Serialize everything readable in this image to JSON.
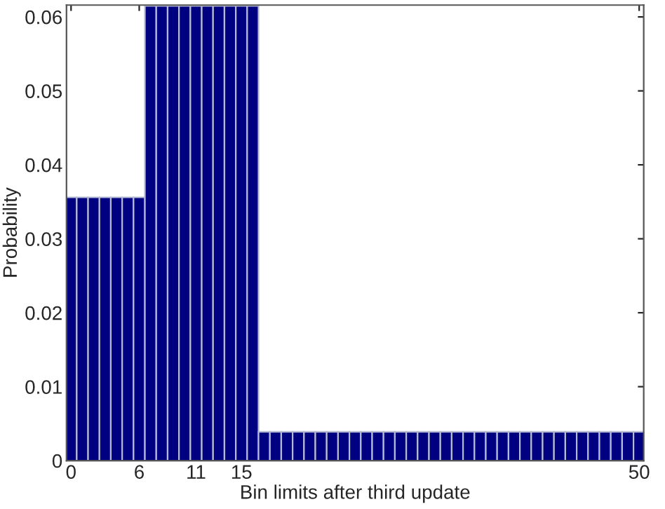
{
  "chart_data": {
    "type": "bar",
    "xlabel": "Bin limits after third update",
    "ylabel": "Probability",
    "x": [
      0,
      1,
      2,
      3,
      4,
      5,
      6,
      7,
      8,
      9,
      10,
      11,
      12,
      13,
      14,
      15,
      16,
      17,
      18,
      19,
      20,
      21,
      22,
      23,
      24,
      25,
      26,
      27,
      28,
      29,
      30,
      31,
      32,
      33,
      34,
      35,
      36,
      37,
      38,
      39,
      40,
      41,
      42,
      43,
      44,
      45,
      46,
      47,
      48,
      49,
      50
    ],
    "values": [
      0.0356,
      0.0356,
      0.0356,
      0.0356,
      0.0356,
      0.0356,
      0.0356,
      0.0615,
      0.0615,
      0.0615,
      0.0615,
      0.0615,
      0.0615,
      0.0615,
      0.0615,
      0.0615,
      0.0615,
      0.0039,
      0.0039,
      0.0039,
      0.0039,
      0.0039,
      0.0039,
      0.0039,
      0.0039,
      0.0039,
      0.0039,
      0.0039,
      0.0039,
      0.0039,
      0.0039,
      0.0039,
      0.0039,
      0.0039,
      0.0039,
      0.0039,
      0.0039,
      0.0039,
      0.0039,
      0.0039,
      0.0039,
      0.0039,
      0.0039,
      0.0039,
      0.0039,
      0.0039,
      0.0039,
      0.0039,
      0.0039,
      0.0039,
      0.0039
    ],
    "color": "#000080",
    "xlim": [
      -0.4,
      50.4
    ],
    "xticks": [
      0,
      6,
      11,
      15,
      50
    ],
    "ylim": [
      0,
      0.0616
    ],
    "yticks": [
      {
        "value": 0,
        "label": "0"
      },
      0.01,
      0.02,
      0.03,
      0.04,
      0.05,
      0.06
    ],
    "grid": false,
    "legend": false
  }
}
